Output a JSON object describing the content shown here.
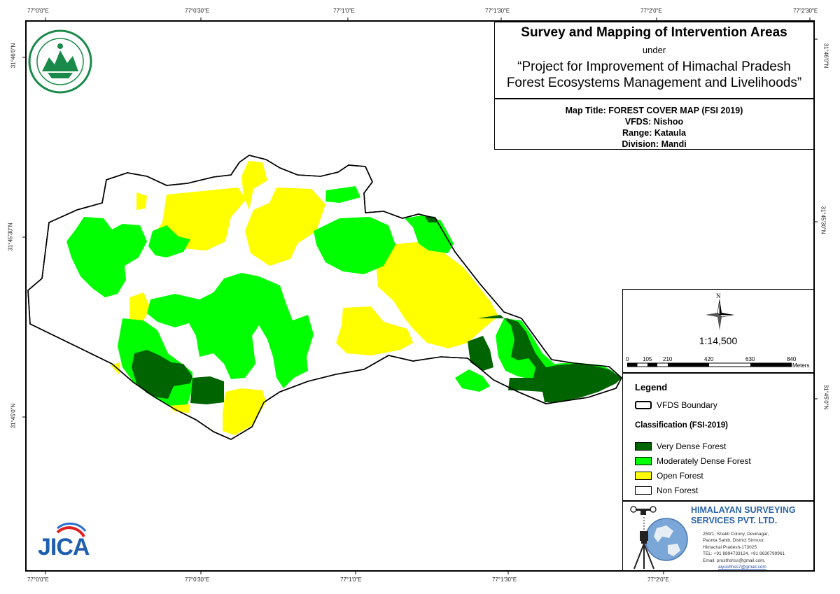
{
  "title": {
    "main": "Survey and Mapping of Intervention Areas",
    "under": "under",
    "project_line1": "“Project for Improvement of Himachal Pradesh",
    "project_line2": "Forest Ecosystems Management and Livelihoods”"
  },
  "info": {
    "map_title": "Map Title: FOREST COVER MAP (FSI 2019)",
    "vfds": "VFDS: Nishoo",
    "range": "Range: Kataula",
    "division": "Division: Mandi"
  },
  "grid": {
    "top_labels": [
      "77°0'0\"E",
      "77°0'30\"E",
      "77°1'0\"E",
      "77°1'30\"E",
      "77°2'0\"E",
      "77°2'30\"E"
    ],
    "bottom_labels": [
      "77°0'0\"E",
      "77°0'30\"E",
      "77°1'0\"E",
      "77°1'30\"E",
      "77°2'0\"E"
    ],
    "left_labels": [
      "31°46'0\"N",
      "31°45'30\"N",
      "31°45'0\"N"
    ],
    "right_labels": [
      "31°46'0\"N",
      "31°45'30\"N",
      "31°45'0\"N"
    ]
  },
  "north_arrow": {
    "label": "N",
    "icon": "compass-rose-icon"
  },
  "scale": {
    "ratio": "1:14,500",
    "ticks": [
      "0",
      "105",
      "210",
      "420",
      "630",
      "840"
    ],
    "unit": "Meters"
  },
  "legend": {
    "title": "Legend",
    "boundary_label": "VFDS Boundary",
    "classification_title": "Classification (FSI-2019)",
    "classes": [
      {
        "label": "Very Dense Forest",
        "color": "#006400"
      },
      {
        "label": "Moderately Dense Forest",
        "color": "#00ff00"
      },
      {
        "label": "Open Forest",
        "color": "#ffff00"
      },
      {
        "label": "Non Forest",
        "color": "#ffffff"
      }
    ]
  },
  "company": {
    "name_line1": "HIMALAYAN SURVEYING",
    "name_line2": "SERVICES PVT. LTD.",
    "address_lines": [
      "259/1, Shakti Colony, Devinagar,",
      "Paonta Sahib, District Sirmour,",
      "Himachal Pradesh-173025",
      "TEL: +91 8894733124, +91 8630799961",
      "Email: prosthshss@gmail.com,"
    ],
    "email2": "aiyushhss7@gmail.com"
  },
  "logos": {
    "jica": "JICA",
    "hp_forest": "hp-forest-department-emblem"
  }
}
